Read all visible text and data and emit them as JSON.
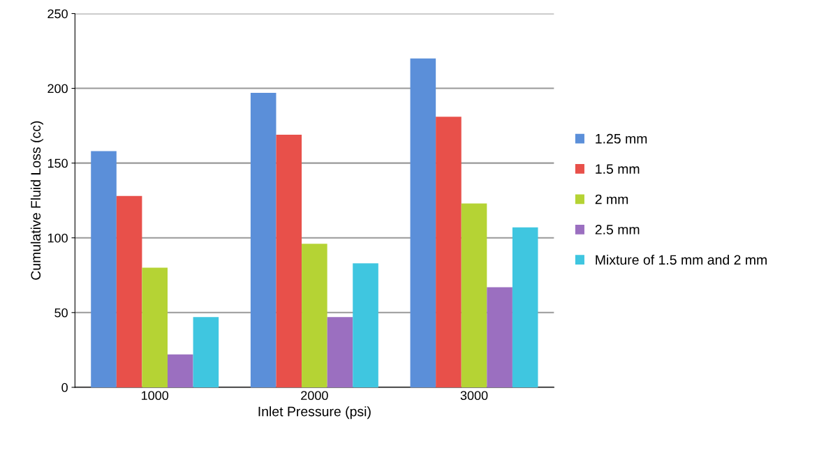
{
  "chart_data": {
    "type": "bar",
    "xlabel": "Inlet Pressure (psi)",
    "ylabel": "Cumulative Fluid Loss (cc)",
    "categories": [
      "1000",
      "2000",
      "3000"
    ],
    "series": [
      {
        "name": "1.25 mm",
        "color": "#5b8fd9",
        "values": [
          158,
          197,
          220
        ]
      },
      {
        "name": "1.5 mm",
        "color": "#e8504a",
        "values": [
          128,
          169,
          181
        ]
      },
      {
        "name": "2 mm",
        "color": "#b5d334",
        "values": [
          80,
          96,
          123
        ]
      },
      {
        "name": "2.5 mm",
        "color": "#9b6fc0",
        "values": [
          22,
          47,
          67
        ]
      },
      {
        "name": "Mixture of 1.5 mm and 2 mm",
        "color": "#3fc6e0",
        "values": [
          47,
          83,
          107
        ]
      }
    ],
    "ylim": [
      0,
      250
    ],
    "yticks": [
      0,
      50,
      100,
      150,
      200,
      250
    ],
    "grid": "y",
    "legend": "right"
  }
}
